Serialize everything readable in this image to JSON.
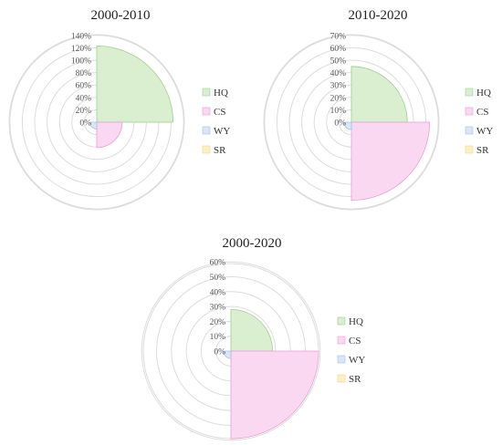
{
  "chart_data": [
    {
      "type": "polar-area",
      "title": "2000-2010",
      "radial_ticks": [
        "0%",
        "20%",
        "40%",
        "60%",
        "80%",
        "100%",
        "120%",
        "140%"
      ],
      "rmax": 140,
      "categories": [
        "HQ",
        "CS",
        "WY",
        "SR"
      ],
      "values": [
        123,
        41,
        11,
        0
      ],
      "legend_position": "right"
    },
    {
      "type": "polar-area",
      "title": "2010-2020",
      "radial_ticks": [
        "0%",
        "10%",
        "20%",
        "30%",
        "40%",
        "50%",
        "60%",
        "70%"
      ],
      "rmax": 70,
      "categories": [
        "HQ",
        "CS",
        "WY",
        "SR"
      ],
      "values": [
        45,
        63,
        6,
        0
      ],
      "legend_position": "right"
    },
    {
      "type": "polar-area",
      "title": "2000-2020",
      "radial_ticks": [
        "0%",
        "10%",
        "20%",
        "30%",
        "40%",
        "50%",
        "60%"
      ],
      "rmax": 60,
      "categories": [
        "HQ",
        "CS",
        "WY",
        "SR"
      ],
      "values": [
        28,
        59,
        5,
        0
      ],
      "legend_position": "right"
    }
  ],
  "colors": {
    "HQ": {
      "fill": "#d9efcf",
      "stroke": "#9fd08f"
    },
    "CS": {
      "fill": "#fbd8f1",
      "stroke": "#ea9fd8"
    },
    "WY": {
      "fill": "#d8e6f8",
      "stroke": "#a6c0e8"
    },
    "SR": {
      "fill": "#fcefc4",
      "stroke": "#ecd68a"
    }
  }
}
